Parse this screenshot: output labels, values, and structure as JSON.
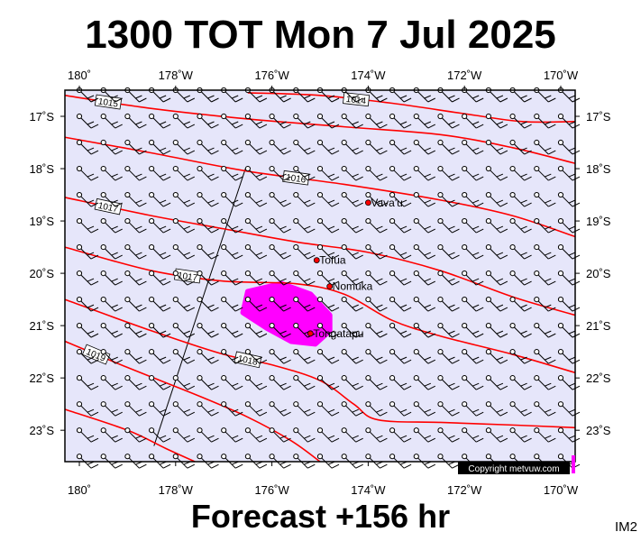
{
  "title": "1300 TOT Mon 7 Jul 2025",
  "footer": "Forecast +156 hr",
  "corner_label": "IM2",
  "copyright": "Copyright metvuw.com",
  "colors": {
    "map_bg": "#e6e6fa",
    "isobar": "#ff0000",
    "rain": "#ff00ff",
    "barb": "#000000",
    "border": "#000000"
  },
  "map": {
    "lon_range": [
      -180.3,
      -169.7
    ],
    "lat_range": [
      -16.5,
      -23.6
    ],
    "lon_ticks": [
      {
        "value": -180,
        "label": "180˚"
      },
      {
        "value": -178,
        "label": "178˚W"
      },
      {
        "value": -176,
        "label": "176˚W"
      },
      {
        "value": -174,
        "label": "174˚W"
      },
      {
        "value": -172,
        "label": "172˚W"
      },
      {
        "value": -170,
        "label": "170˚W"
      }
    ],
    "lat_ticks": [
      {
        "value": -17,
        "label": "17˚S"
      },
      {
        "value": -18,
        "label": "18˚S"
      },
      {
        "value": -19,
        "label": "19˚S"
      },
      {
        "value": -20,
        "label": "20˚S"
      },
      {
        "value": -21,
        "label": "21˚S"
      },
      {
        "value": -22,
        "label": "22˚S"
      },
      {
        "value": -23,
        "label": "23˚S"
      }
    ],
    "isobars": [
      {
        "label": "1015",
        "points": [
          [
            -180.3,
            -16.6
          ],
          [
            -178.5,
            -16.85
          ],
          [
            -176.5,
            -17.05
          ],
          [
            -174.5,
            -17.2
          ],
          [
            -172.5,
            -17.35
          ],
          [
            -171,
            -17.6
          ],
          [
            -169.7,
            -17.9
          ]
        ]
      },
      {
        "label": "1014",
        "points": [
          [
            -176.5,
            -16.55
          ],
          [
            -175,
            -16.6
          ],
          [
            -173.5,
            -16.75
          ],
          [
            -172,
            -16.95
          ],
          [
            -170.8,
            -17.1
          ],
          [
            -169.7,
            -17.1
          ]
        ]
      },
      {
        "label": "1016",
        "points": [
          [
            -180.3,
            -17.4
          ],
          [
            -178.5,
            -17.7
          ],
          [
            -176.5,
            -18.05
          ],
          [
            -174.5,
            -18.3
          ],
          [
            -172.5,
            -18.6
          ],
          [
            -171,
            -18.9
          ],
          [
            -169.7,
            -19.3
          ]
        ]
      },
      {
        "label": "1017",
        "points": [
          [
            -180.3,
            -18.55
          ],
          [
            -178.5,
            -18.9
          ],
          [
            -177,
            -19.15
          ],
          [
            -175.5,
            -19.4
          ],
          [
            -174,
            -19.6
          ],
          [
            -172.5,
            -19.95
          ],
          [
            -171,
            -20.45
          ],
          [
            -169.7,
            -20.8
          ]
        ]
      },
      {
        "label": "1017",
        "points": [
          [
            -180.3,
            -19.5
          ],
          [
            -178.5,
            -19.95
          ],
          [
            -177,
            -20.15
          ],
          [
            -175.5,
            -20.2
          ],
          [
            -174.5,
            -20.4
          ],
          [
            -173.5,
            -20.9
          ],
          [
            -172.5,
            -21.2
          ],
          [
            -171,
            -21.55
          ],
          [
            -169.7,
            -21.9
          ]
        ]
      },
      {
        "label": "1018",
        "points": [
          [
            -180.3,
            -20.5
          ],
          [
            -178.5,
            -21.1
          ],
          [
            -177,
            -21.55
          ],
          [
            -176,
            -21.75
          ],
          [
            -175,
            -22.05
          ],
          [
            -174.3,
            -22.5
          ],
          [
            -173.8,
            -22.8
          ],
          [
            -172.5,
            -22.85
          ],
          [
            -171,
            -22.9
          ],
          [
            -169.7,
            -22.95
          ]
        ]
      },
      {
        "label": "1019",
        "points": [
          [
            -180.3,
            -21.3
          ],
          [
            -179,
            -21.8
          ],
          [
            -177.5,
            -22.35
          ],
          [
            -176.5,
            -22.75
          ],
          [
            -175.6,
            -23.2
          ],
          [
            -175,
            -23.6
          ]
        ]
      },
      {
        "label": "",
        "points": [
          [
            -180.3,
            -22.6
          ],
          [
            -179,
            -23.0
          ],
          [
            -178.2,
            -23.35
          ],
          [
            -177.6,
            -23.6
          ]
        ]
      }
    ],
    "rain_area": [
      [
        -176.5,
        -20.35
      ],
      [
        -175.8,
        -20.2
      ],
      [
        -175.2,
        -20.4
      ],
      [
        -174.8,
        -20.8
      ],
      [
        -174.8,
        -21.1
      ],
      [
        -175.1,
        -21.35
      ],
      [
        -175.6,
        -21.3
      ],
      [
        -176.1,
        -21.05
      ],
      [
        -176.6,
        -20.75
      ]
    ],
    "places": [
      {
        "name": "Vava'u",
        "lon": -174.0,
        "lat": -18.65
      },
      {
        "name": "Tofua",
        "lon": -175.07,
        "lat": -19.75
      },
      {
        "name": "Nomuka",
        "lon": -174.8,
        "lat": -20.25
      },
      {
        "name": "Tongatapu",
        "lon": -175.2,
        "lat": -21.15
      }
    ],
    "dateline_segment": [
      [
        -176.55,
        -18.0
      ],
      [
        -178.45,
        -23.3
      ]
    ]
  }
}
